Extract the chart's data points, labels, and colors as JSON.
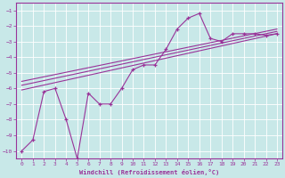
{
  "xlabel": "Windchill (Refroidissement éolien,°C)",
  "xlim": [
    -0.5,
    23.5
  ],
  "ylim": [
    -10.5,
    -0.5
  ],
  "yticks": [
    -10,
    -9,
    -8,
    -7,
    -6,
    -5,
    -4,
    -3,
    -2,
    -1
  ],
  "xticks": [
    0,
    1,
    2,
    3,
    4,
    5,
    6,
    7,
    8,
    9,
    10,
    11,
    12,
    13,
    14,
    15,
    16,
    17,
    18,
    19,
    20,
    21,
    22,
    23
  ],
  "bg_color": "#c8e8e8",
  "line_color": "#993399",
  "grid_color": "#ffffff",
  "spine_color": "#993399",
  "line1_x": [
    0,
    1,
    2,
    3,
    4,
    5,
    6,
    7,
    8,
    9,
    10,
    11,
    12,
    13,
    14,
    15,
    16,
    17,
    18,
    19,
    20,
    21,
    22,
    23
  ],
  "line1_y": [
    -10.0,
    -9.3,
    -6.2,
    -6.0,
    -8.0,
    -10.5,
    -6.3,
    -7.0,
    -7.0,
    -6.0,
    -4.8,
    -4.5,
    -4.5,
    -3.5,
    -2.2,
    -1.5,
    -1.2,
    -2.8,
    -3.0,
    -2.5,
    -2.5,
    -2.5,
    -2.6,
    -2.5
  ],
  "line2_x": [
    0,
    23
  ],
  "line2_y": [
    -6.1,
    -2.5
  ],
  "line3_x": [
    0,
    23
  ],
  "line3_y": [
    -5.8,
    -2.35
  ],
  "line4_x": [
    0,
    23
  ],
  "line4_y": [
    -5.55,
    -2.2
  ]
}
